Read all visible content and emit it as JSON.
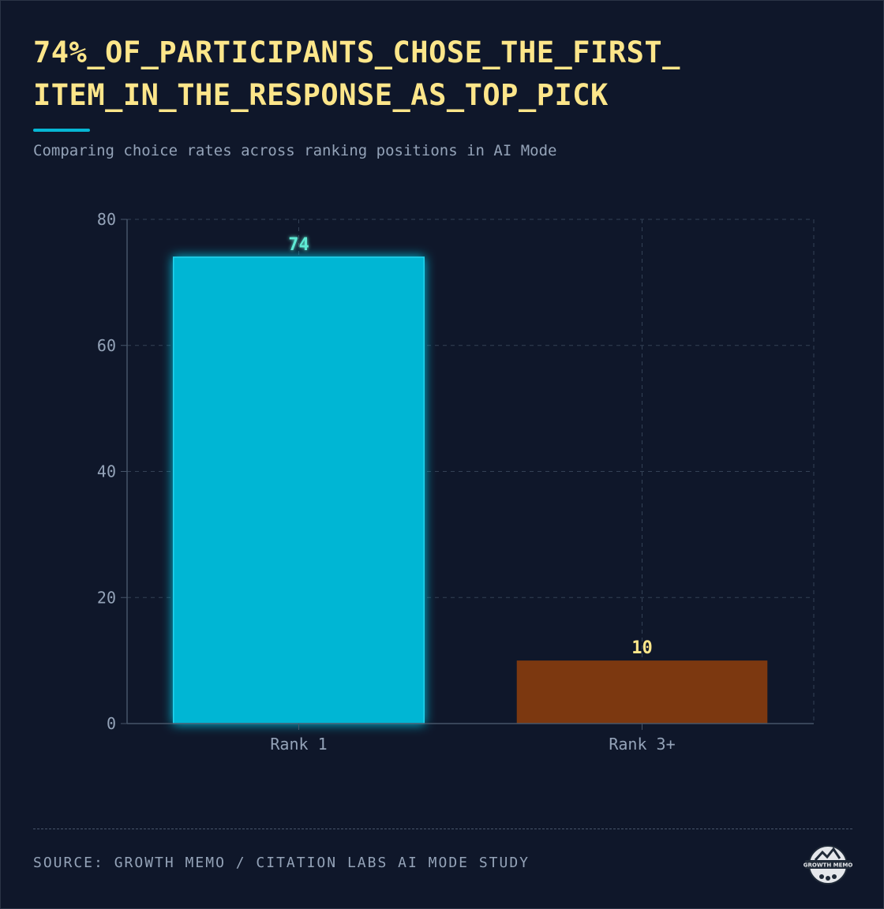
{
  "header": {
    "title_lines": [
      "74%_OF_PARTICIPANTS_CHOSE_THE_FIRST_",
      "ITEM_IN_THE_RESPONSE_AS_TOP_PICK"
    ],
    "subtitle": "Comparing choice rates across ranking positions in AI Mode"
  },
  "chart_data": {
    "type": "bar",
    "title": "74%_OF_PARTICIPANTS_CHOSE_THE_FIRST_ITEM_IN_THE_RESPONSE_AS_TOP_PICK",
    "subtitle": "Comparing choice rates across ranking positions in AI Mode",
    "xlabel": "",
    "ylabel": "",
    "categories": [
      "Rank 1",
      "Rank 3+"
    ],
    "values": [
      74,
      10
    ],
    "data_labels": [
      "74",
      "10"
    ],
    "ylim": [
      0,
      80
    ],
    "y_ticks": [
      0,
      20,
      40,
      60,
      80
    ],
    "grid": true,
    "legend": "none",
    "colors": [
      "#06b6d4",
      "#7c3810"
    ],
    "label_colors": [
      "#5eead4",
      "#fde68a"
    ]
  },
  "footer": {
    "source": "SOURCE: GROWTH MEMO / CITATION LABS AI MODE STUDY",
    "logo_text": "GROWTH MEMO"
  }
}
